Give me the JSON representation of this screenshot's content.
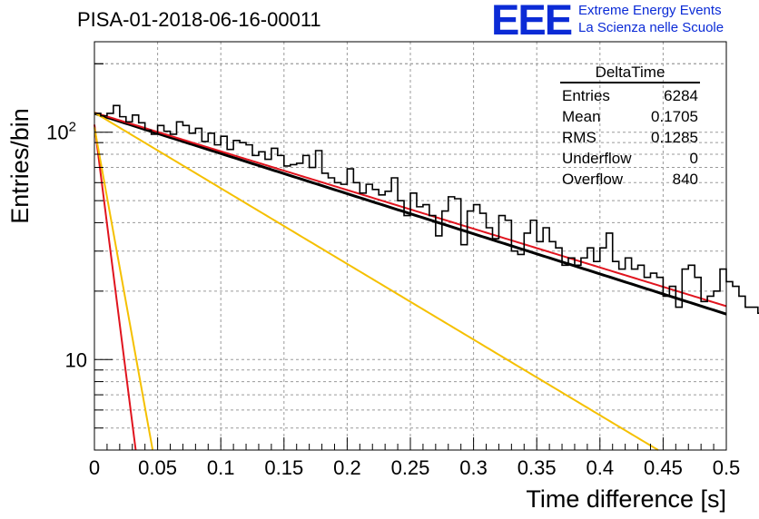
{
  "header": {
    "run_title": "PISA-01-2018-06-16-00011",
    "logo": "EEE",
    "project_line1": "Extreme Energy Events",
    "project_line2": "La Scienza nelle Scuole"
  },
  "stats_box": {
    "title": "DeltaTime",
    "rows": [
      {
        "label": "Entries",
        "value": "6284"
      },
      {
        "label": "Mean",
        "value": "0.1705"
      },
      {
        "label": "RMS",
        "value": "0.1285"
      },
      {
        "label": "Underflow",
        "value": "0"
      },
      {
        "label": "Overflow",
        "value": "840"
      }
    ]
  },
  "chart_data": {
    "type": "histogram",
    "title": "PISA-01-2018-06-16-00011",
    "xlabel": "Time difference [s]",
    "ylabel": "Entries/bin",
    "xlim": [
      0,
      0.5
    ],
    "ylim": [
      4,
      250
    ],
    "yscale": "log",
    "grid": true,
    "x_tick_labels": [
      "0",
      "0.05",
      "0.1",
      "0.15",
      "0.2",
      "0.25",
      "0.3",
      "0.35",
      "0.4",
      "0.45",
      "0.5"
    ],
    "y_tick_labels": [
      {
        "value": 10,
        "label": "10"
      },
      {
        "value": 100,
        "label": "10^2"
      }
    ],
    "bin_width": 0.005,
    "histogram": [
      121,
      118,
      121,
      131,
      117,
      111,
      119,
      110,
      102,
      98,
      107,
      101,
      98,
      111,
      107,
      99,
      104,
      91,
      99,
      88,
      96,
      84,
      92,
      90,
      88,
      79,
      82,
      76,
      85,
      79,
      71,
      72,
      73,
      79,
      70,
      83,
      66,
      63,
      60,
      59,
      69,
      60,
      54,
      59,
      56,
      53,
      55,
      63,
      50,
      43,
      54,
      47,
      48,
      43,
      35,
      45,
      52,
      51,
      32,
      45,
      48,
      44,
      38,
      34,
      43,
      41,
      30,
      29,
      36,
      41,
      33,
      38,
      33,
      31,
      26,
      28,
      26,
      28,
      31,
      27,
      31,
      36,
      27,
      25,
      28,
      25,
      26,
      23,
      24,
      23,
      19,
      21,
      17,
      25,
      26,
      23,
      18,
      19,
      20,
      25,
      22,
      21,
      19,
      17,
      17,
      16,
      18,
      20,
      17,
      14,
      15,
      19,
      14,
      12,
      11,
      12,
      15,
      12,
      11,
      13,
      14,
      11,
      12,
      14,
      11,
      13,
      14,
      12,
      11,
      10,
      11,
      9,
      13,
      11,
      10,
      11,
      10,
      11,
      12,
      9,
      10,
      11,
      12,
      9,
      10,
      9,
      11,
      9,
      10,
      9
    ],
    "fits": [
      {
        "name": "black-fit",
        "color": "#000000",
        "amplitude": 121,
        "tau": 0.246
      },
      {
        "name": "red-fit",
        "color": "#e0141e",
        "amplitude": 122,
        "tau": 0.255
      },
      {
        "name": "yellow-slow",
        "color": "#f5c000",
        "amplitude": 122,
        "tau": 0.1305
      },
      {
        "name": "red-fast",
        "color": "#e0141e",
        "amplitude": 108,
        "tau": 0.00991,
        "x_max": 0.035
      },
      {
        "name": "yellow-fast",
        "color": "#f5c000",
        "amplitude": 105,
        "tau": 0.0141,
        "x_max": 0.046
      }
    ]
  }
}
